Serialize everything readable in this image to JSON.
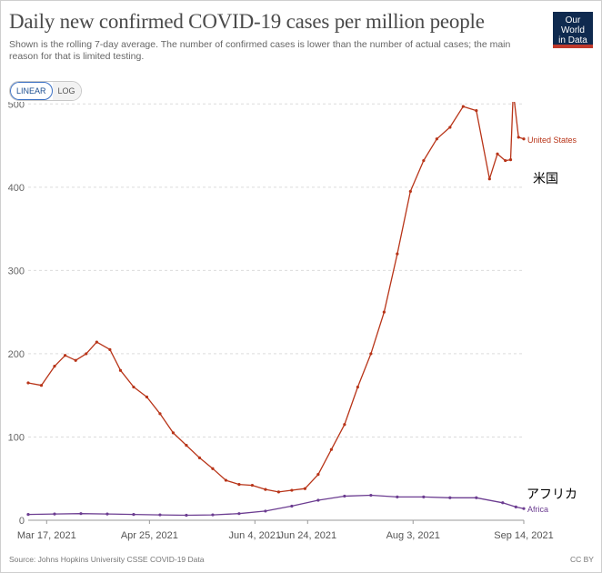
{
  "header": {
    "title": "Daily new confirmed COVID-19 cases per million people",
    "subtitle": "Shown is the rolling 7-day average. The number of confirmed cases is lower than the number of actual cases; the main reason for that is limited testing."
  },
  "logo": {
    "line1": "Our World",
    "line2": "in Data"
  },
  "scale_toggle": {
    "linear": "LINEAR",
    "log": "LOG",
    "selected": "LINEAR"
  },
  "footer": {
    "source": "Source: Johns Hopkins University CSSE COVID-19 Data",
    "license": "CC BY"
  },
  "annotations": {
    "us_jp": "米国",
    "africa_jp": "アフリカ"
  },
  "chart_data": {
    "type": "line",
    "title": "Daily new confirmed COVID-19 cases per million people",
    "xlabel": "",
    "ylabel": "",
    "ylim": [
      0,
      520
    ],
    "y_ticks": [
      0,
      100,
      200,
      300,
      400,
      500
    ],
    "x_tick_labels": [
      "Mar 17, 2021",
      "Apr 25, 2021",
      "Jun 4, 2021",
      "Jun 24, 2021",
      "Aug 3, 2021",
      "Sep 14, 2021"
    ],
    "x_tick_days": [
      7,
      46,
      86,
      106,
      146,
      188
    ],
    "x_range_days": [
      0,
      188
    ],
    "start_date": "Mar 10, 2021",
    "grid": "horizontal-dashed",
    "series": [
      {
        "name": "United States",
        "color": "#b83418",
        "days": [
          0,
          5,
          10,
          14,
          18,
          22,
          26,
          31,
          35,
          40,
          45,
          50,
          55,
          60,
          65,
          70,
          75,
          80,
          85,
          90,
          95,
          100,
          105,
          110,
          115,
          120,
          125,
          130,
          135,
          140,
          145,
          150,
          155,
          160,
          165,
          170,
          175,
          178,
          181,
          183,
          184,
          186,
          188
        ],
        "values": [
          165,
          162,
          185,
          198,
          192,
          200,
          214,
          205,
          180,
          160,
          148,
          128,
          105,
          90,
          75,
          62,
          48,
          43,
          42,
          37,
          34,
          36,
          38,
          55,
          85,
          115,
          160,
          200,
          250,
          320,
          395,
          432,
          458,
          472,
          497,
          492,
          410,
          440,
          432,
          433,
          515,
          460,
          458
        ]
      },
      {
        "name": "Africa",
        "color": "#6c3d91",
        "days": [
          0,
          10,
          20,
          30,
          40,
          50,
          60,
          70,
          80,
          90,
          100,
          110,
          120,
          130,
          140,
          150,
          160,
          170,
          180,
          185,
          188
        ],
        "values": [
          7,
          7.5,
          8,
          7.5,
          7,
          6.5,
          6,
          6.5,
          8,
          11,
          17,
          24,
          29,
          30,
          28,
          28,
          27,
          27,
          21,
          16,
          14
        ]
      }
    ]
  }
}
